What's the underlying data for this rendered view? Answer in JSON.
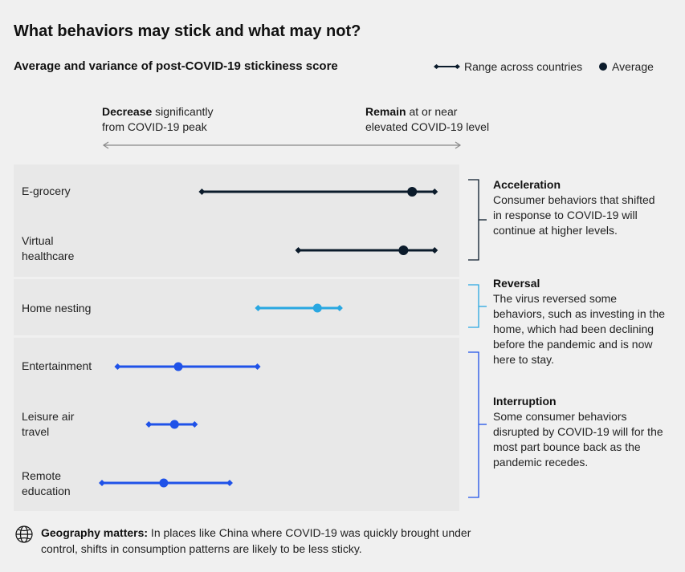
{
  "title": "What behaviors may stick and what may not?",
  "subtitle": "Average and variance of post-COVID-19 stickiness score",
  "legend": {
    "range_label": "Range across countries",
    "average_label": "Average"
  },
  "direction": {
    "left_bold": "Decrease",
    "left_rest1": " significantly",
    "left_rest2": "from COVID-19 peak",
    "right_bold": "Remain",
    "right_rest1": " at or near",
    "right_rest2": "elevated COVID-19 level"
  },
  "groups": [
    {
      "title": "Acceleration",
      "description": "Consumer behaviors that shifted in response to COVID-19 will continue at higher levels."
    },
    {
      "title": "Reversal",
      "description": "The virus reversed some behaviors, such as investing in the home, which had been declining before the pandemic and is now here to stay."
    },
    {
      "title": "Interruption",
      "description": "Some consumer behaviors disrupted by COVID-19 will for the most part bounce back as the pandemic recedes."
    }
  ],
  "footer": {
    "bold": "Geography matters:",
    "text": " In places like China where COVID-19 was quickly brought under control, shifts in consumption patterns are likely to be less sticky."
  },
  "colors": {
    "acceleration": "#0b1b2b",
    "reversal": "#29a7e1",
    "interruption": "#1f52e8",
    "axis": "#888888"
  },
  "chart_data": {
    "type": "dot-range",
    "scale": "relative stickiness (0 = decrease significantly from COVID-19 peak, 100 = remain at or near elevated COVID-19 level)",
    "xlim": [
      0,
      100
    ],
    "rows": [
      {
        "label_lines": [
          "E-grocery"
        ],
        "group": "acceleration",
        "min": 28.8,
        "avg": 89.4,
        "max": 95.9
      },
      {
        "label_lines": [
          "Virtual",
          "healthcare"
        ],
        "group": "acceleration",
        "min": 56.6,
        "avg": 86.9,
        "max": 95.9
      },
      {
        "label_lines": [
          "Home nesting"
        ],
        "group": "reversal",
        "min": 45.0,
        "avg": 62.1,
        "max": 68.5
      },
      {
        "label_lines": [
          "Entertainment"
        ],
        "group": "interruption",
        "min": 4.5,
        "avg": 22.0,
        "max": 44.8
      },
      {
        "label_lines": [
          "Leisure air",
          "travel"
        ],
        "group": "interruption",
        "min": 13.5,
        "avg": 20.9,
        "max": 26.7
      },
      {
        "label_lines": [
          "Remote",
          "education"
        ],
        "group": "interruption",
        "min": 0,
        "avg": 17.8,
        "max": 36.8
      }
    ]
  }
}
